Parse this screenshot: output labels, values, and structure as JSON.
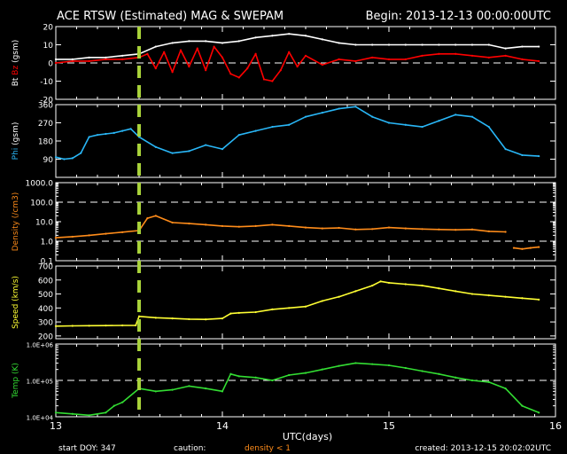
{
  "header": {
    "title": "ACE RTSW (Estimated) MAG & SWEPAM",
    "begin": "Begin: 2013-12-13 00:00:00UTC"
  },
  "footer": {
    "start_doy": "start DOY: 347",
    "caution_label": "caution:",
    "caution_note": "density < 1",
    "created": "created: 2013-12-15 20:02:02UTC"
  },
  "colors": {
    "bt": "#ffffff",
    "bz": "#ff0000",
    "phi": "#29b6f6",
    "density": "#ff8c1a",
    "speed": "#ffff33",
    "temp": "#33dd33",
    "marker": "#a8d23a",
    "axes": "#ffffff",
    "dashed": "#ffffff"
  },
  "chart_data": {
    "type": "line",
    "xlabel": "UTC(days)",
    "xlim": [
      13,
      16
    ],
    "xticks": [
      "13",
      "14",
      "15",
      "16"
    ],
    "marker_x": 13.5,
    "panels": [
      {
        "id": "mag",
        "ylabel_parts": [
          "Bt",
          "Bz",
          "(gsm)"
        ],
        "ylim": [
          -20,
          20
        ],
        "yticks": [
          -20,
          -10,
          0,
          10,
          20
        ],
        "scale": "linear",
        "dashed": [
          0
        ],
        "series": [
          {
            "name": "Bt",
            "color": "#ffffff",
            "x": [
              13.0,
              13.1,
              13.2,
              13.3,
              13.4,
              13.5,
              13.6,
              13.7,
              13.8,
              13.9,
              14.0,
              14.1,
              14.2,
              14.3,
              14.4,
              14.5,
              14.6,
              14.7,
              14.8,
              14.9,
              15.0,
              15.1,
              15.2,
              15.3,
              15.4,
              15.5,
              15.6,
              15.7,
              15.8,
              15.9
            ],
            "y": [
              2,
              2,
              3,
              3,
              4,
              5,
              9,
              11,
              12,
              12,
              11,
              12,
              14,
              15,
              16,
              15,
              13,
              11,
              10,
              10,
              10,
              10,
              10,
              10,
              10,
              10,
              10,
              8,
              9,
              9
            ]
          },
          {
            "name": "Bz",
            "color": "#ff0000",
            "x": [
              13.0,
              13.1,
              13.2,
              13.3,
              13.4,
              13.5,
              13.55,
              13.6,
              13.65,
              13.7,
              13.75,
              13.8,
              13.85,
              13.9,
              13.95,
              14.0,
              14.05,
              14.1,
              14.15,
              14.2,
              14.25,
              14.3,
              14.35,
              14.4,
              14.45,
              14.5,
              14.6,
              14.7,
              14.8,
              14.9,
              15.0,
              15.1,
              15.2,
              15.3,
              15.4,
              15.5,
              15.6,
              15.7,
              15.8,
              15.9
            ],
            "y": [
              0,
              1,
              1,
              2,
              2,
              3,
              5,
              -3,
              6,
              -5,
              7,
              -2,
              8,
              -4,
              9,
              3,
              -6,
              -8,
              -3,
              5,
              -9,
              -10,
              -4,
              6,
              -2,
              4,
              -1,
              2,
              1,
              3,
              2,
              2,
              4,
              5,
              5,
              4,
              3,
              4,
              2,
              1
            ]
          }
        ]
      },
      {
        "id": "phi",
        "ylabel_parts": [
          "Phi",
          "(gsm)"
        ],
        "ylim": [
          0,
          360
        ],
        "yticks": [
          90,
          180,
          270,
          360
        ],
        "scale": "linear",
        "dashed": [],
        "series": [
          {
            "name": "Phi",
            "color": "#29b6f6",
            "x": [
              13.0,
              13.05,
              13.1,
              13.15,
              13.2,
              13.25,
              13.3,
              13.35,
              13.4,
              13.45,
              13.5,
              13.6,
              13.7,
              13.8,
              13.9,
              14.0,
              14.1,
              14.2,
              14.3,
              14.4,
              14.5,
              14.6,
              14.7,
              14.8,
              14.9,
              15.0,
              15.1,
              15.2,
              15.3,
              15.4,
              15.5,
              15.6,
              15.7,
              15.8,
              15.9
            ],
            "y": [
              100,
              90,
              95,
              120,
              200,
              210,
              215,
              220,
              230,
              240,
              200,
              150,
              120,
              130,
              160,
              140,
              210,
              230,
              250,
              260,
              300,
              320,
              340,
              350,
              300,
              270,
              260,
              250,
              280,
              310,
              300,
              250,
              140,
              110,
              105
            ]
          }
        ]
      },
      {
        "id": "density",
        "ylabel_parts": [
          "Density",
          "(/cm3)"
        ],
        "ylim": [
          0.1,
          1000
        ],
        "yticks": [
          0.1,
          1,
          10,
          100,
          1000
        ],
        "ytick_labels": [
          "0.1",
          "1.0",
          "10.0",
          "100.0",
          "1000.0"
        ],
        "scale": "log",
        "dashed": [
          1,
          100
        ],
        "series": [
          {
            "name": "Density",
            "color": "#ff8c1a",
            "x": [
              13.0,
              13.1,
              13.2,
              13.3,
              13.4,
              13.5,
              13.55,
              13.6,
              13.7,
              13.8,
              13.9,
              14.0,
              14.1,
              14.2,
              14.3,
              14.4,
              14.5,
              14.6,
              14.7,
              14.8,
              14.9,
              15.0,
              15.1,
              15.2,
              15.3,
              15.4,
              15.5,
              15.6,
              15.7
            ],
            "y": [
              1.5,
              1.7,
              2.0,
              2.4,
              2.9,
              3.5,
              15,
              20,
              9,
              8,
              7,
              6,
              5.5,
              6,
              7,
              6,
              5,
              4.5,
              4.8,
              4,
              4.2,
              5,
              4.5,
              4.2,
              4,
              3.8,
              4,
              3.2,
              3
            ]
          },
          {
            "name": "Density low",
            "color": "#ff8c1a",
            "x": [
              15.75,
              15.8,
              15.85,
              15.9
            ],
            "y": [
              0.45,
              0.4,
              0.45,
              0.5
            ]
          }
        ]
      },
      {
        "id": "speed",
        "ylabel_parts": [
          "Speed",
          "(km/s)"
        ],
        "ylim": [
          180,
          700
        ],
        "yticks": [
          200,
          300,
          400,
          500,
          600,
          700
        ],
        "scale": "linear",
        "dashed": [],
        "series": [
          {
            "name": "Speed",
            "color": "#ffff33",
            "x": [
              13.0,
              13.1,
              13.2,
              13.3,
              13.4,
              13.48,
              13.5,
              13.6,
              13.7,
              13.8,
              13.9,
              14.0,
              14.05,
              14.1,
              14.2,
              14.3,
              14.4,
              14.5,
              14.6,
              14.7,
              14.8,
              14.9,
              14.95,
              15.0,
              15.1,
              15.2,
              15.3,
              15.4,
              15.5,
              15.6,
              15.7,
              15.8,
              15.9
            ],
            "y": [
              270,
              272,
              273,
              274,
              275,
              276,
              340,
              330,
              325,
              320,
              318,
              325,
              360,
              365,
              370,
              390,
              400,
              410,
              450,
              480,
              520,
              560,
              590,
              580,
              570,
              560,
              540,
              520,
              500,
              490,
              480,
              470,
              460
            ]
          }
        ]
      },
      {
        "id": "temp",
        "ylabel_parts": [
          "Temp",
          "(K)"
        ],
        "ylim": [
          10000,
          1000000
        ],
        "yticks": [
          10000,
          100000,
          1000000
        ],
        "ytick_labels": [
          "1.0E+04",
          "1.0E+05",
          "1.0E+06"
        ],
        "scale": "log",
        "dashed": [
          100000
        ],
        "series": [
          {
            "name": "Temp",
            "color": "#33dd33",
            "x": [
              13.0,
              13.1,
              13.2,
              13.3,
              13.35,
              13.4,
              13.5,
              13.6,
              13.7,
              13.8,
              13.9,
              14.0,
              14.05,
              14.1,
              14.2,
              14.3,
              14.4,
              14.5,
              14.6,
              14.7,
              14.8,
              14.9,
              15.0,
              15.1,
              15.2,
              15.3,
              15.4,
              15.5,
              15.6,
              15.7,
              15.8,
              15.9
            ],
            "y": [
              13000,
              12000,
              11000,
              13000,
              20000,
              25000,
              60000,
              50000,
              55000,
              70000,
              60000,
              50000,
              150000,
              130000,
              120000,
              100000,
              140000,
              160000,
              200000,
              250000,
              300000,
              280000,
              260000,
              220000,
              180000,
              150000,
              120000,
              100000,
              90000,
              60000,
              20000,
              13000
            ]
          }
        ]
      }
    ]
  }
}
